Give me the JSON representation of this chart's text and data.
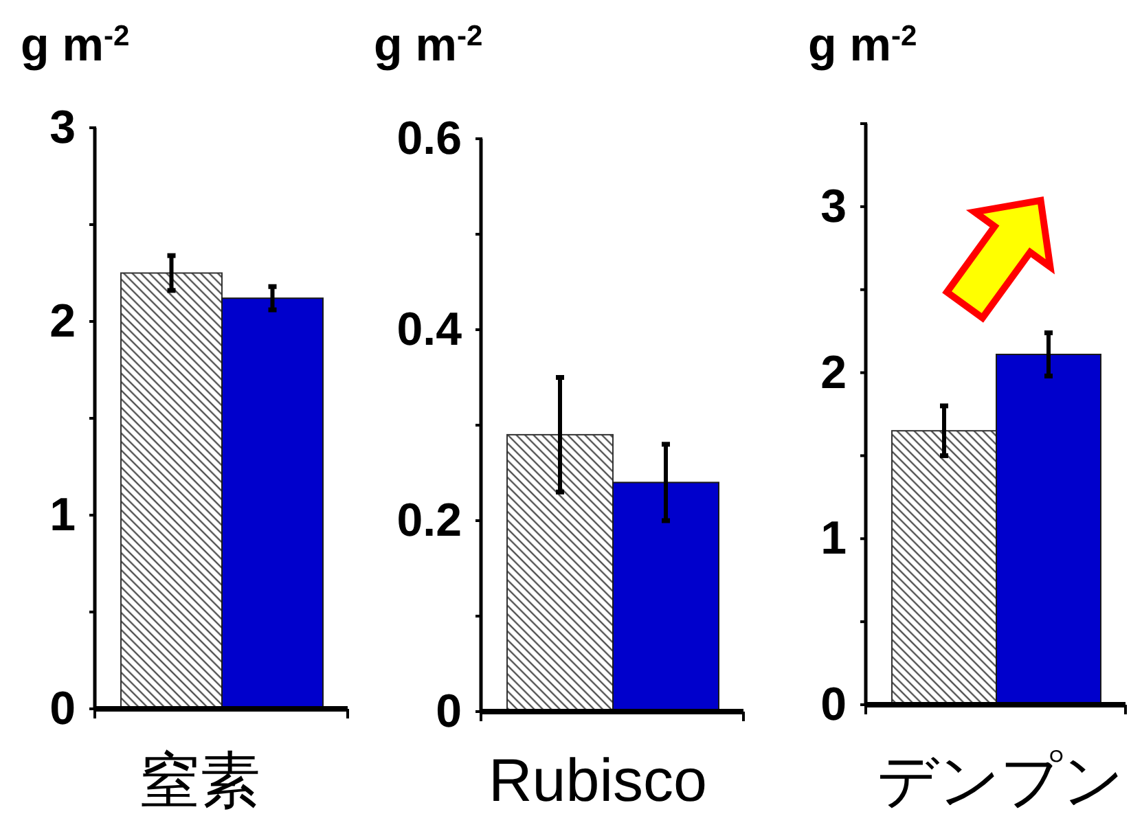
{
  "chart_data": [
    {
      "type": "bar",
      "ylabel": "g m$^{-2}$",
      "categories": [
        "窒素"
      ],
      "series": [
        {
          "color": "#333333",
          "values": [
            2.25
          ],
          "errors": [
            0.09
          ]
        },
        {
          "color": "#0000cc",
          "values": [
            2.12
          ],
          "errors": [
            0.06
          ]
        }
      ],
      "ylim": [
        0,
        3
      ],
      "yticks": [
        0,
        {
          "value": 0.5,
          "label": null
        },
        1,
        {
          "value": 1.5,
          "label": null
        },
        2,
        {
          "value": 2.5,
          "label": null
        },
        3
      ]
    },
    {
      "type": "bar",
      "ylabel": "g m$^{-2}$",
      "categories": [
        "Rubisco"
      ],
      "series": [
        {
          "color": "#333333",
          "values": [
            0.29
          ],
          "errors": [
            0.06
          ]
        },
        {
          "color": "#0000cc",
          "values": [
            0.24
          ],
          "errors": [
            0.04
          ]
        }
      ],
      "ylim": [
        0,
        0.6
      ],
      "yticks": [
        0,
        {
          "value": 0.1,
          "label": null
        },
        0.2,
        {
          "value": 0.3,
          "label": null
        },
        0.4,
        {
          "value": 0.5,
          "label": null
        },
        0.6
      ]
    },
    {
      "type": "bar",
      "ylabel": "g m$^{-2}$",
      "categories": [
        "デンプン"
      ],
      "series": [
        {
          "color": "#333333",
          "values": [
            1.65
          ],
          "errors": [
            0.15
          ]
        },
        {
          "color": "#0000cc",
          "values": [
            2.11
          ],
          "errors": [
            0.13
          ]
        }
      ],
      "ylim": [
        0,
        3.5
      ],
      "yticks": [
        0,
        {
          "value": 0.5,
          "label": null
        },
        1,
        {
          "value": 1.5,
          "label": null
        },
        2,
        {
          "value": 2.5,
          "label": null
        },
        3,
        {
          "value": 3.5,
          "label": null
        }
      ]
    }
  ]
}
